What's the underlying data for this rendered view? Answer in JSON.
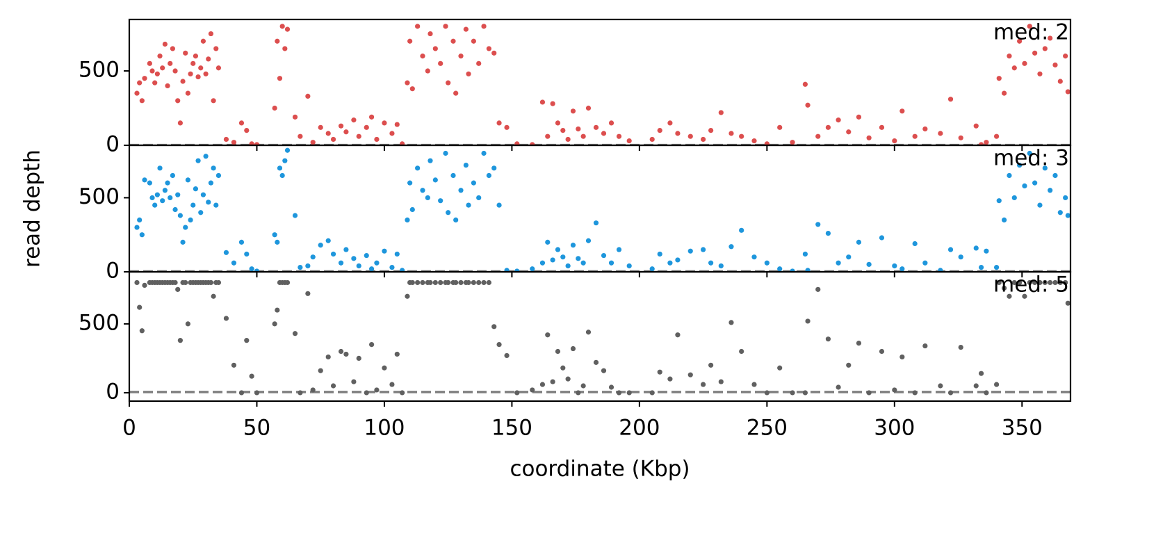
{
  "chart_data": [
    {
      "type": "scatter",
      "color": "#dc4e4e",
      "annotation": "med: 2",
      "median": 2,
      "xlim": [
        0,
        369
      ],
      "ylim": [
        0,
        846
      ],
      "yticks": [
        0,
        500
      ],
      "x": [
        3,
        4,
        5,
        6,
        8,
        9,
        10,
        11,
        12,
        13,
        14,
        15,
        16,
        17,
        18,
        19,
        20,
        21,
        22,
        23,
        24,
        25,
        26,
        27,
        28,
        29,
        30,
        31,
        32,
        33,
        34,
        35,
        38,
        41,
        44,
        46,
        48,
        50,
        57,
        58,
        59,
        60,
        61,
        62,
        65,
        67,
        70,
        72,
        75,
        78,
        80,
        83,
        85,
        88,
        90,
        93,
        95,
        97,
        100,
        103,
        105,
        107,
        109,
        110,
        111,
        113,
        115,
        117,
        118,
        120,
        122,
        124,
        125,
        127,
        128,
        130,
        132,
        133,
        135,
        137,
        139,
        141,
        143,
        145,
        148,
        152,
        158,
        162,
        164,
        166,
        168,
        170,
        172,
        174,
        176,
        178,
        180,
        183,
        186,
        189,
        192,
        196,
        205,
        208,
        212,
        215,
        220,
        225,
        228,
        232,
        236,
        240,
        245,
        250,
        255,
        260,
        265,
        266,
        270,
        274,
        278,
        282,
        286,
        290,
        295,
        300,
        303,
        308,
        312,
        318,
        322,
        326,
        332,
        334,
        336,
        340,
        341,
        343,
        345,
        347,
        349,
        351,
        353,
        355,
        357,
        359,
        361,
        363,
        365,
        367,
        368
      ],
      "values": [
        350,
        420,
        300,
        450,
        550,
        500,
        420,
        480,
        600,
        520,
        680,
        400,
        550,
        650,
        500,
        300,
        150,
        430,
        620,
        350,
        480,
        550,
        600,
        460,
        520,
        700,
        480,
        580,
        750,
        300,
        650,
        520,
        40,
        20,
        150,
        100,
        10,
        5,
        250,
        700,
        450,
        800,
        650,
        780,
        190,
        60,
        330,
        20,
        120,
        80,
        40,
        130,
        90,
        170,
        60,
        120,
        190,
        40,
        150,
        80,
        140,
        10,
        420,
        700,
        380,
        800,
        600,
        500,
        750,
        650,
        550,
        800,
        420,
        700,
        350,
        600,
        780,
        480,
        700,
        550,
        800,
        650,
        620,
        150,
        120,
        10,
        5,
        290,
        60,
        280,
        150,
        100,
        40,
        230,
        110,
        60,
        250,
        120,
        80,
        150,
        60,
        30,
        40,
        100,
        150,
        80,
        60,
        40,
        100,
        220,
        80,
        60,
        30,
        10,
        120,
        20,
        410,
        270,
        60,
        120,
        170,
        90,
        190,
        50,
        120,
        30,
        230,
        60,
        110,
        80,
        310,
        50,
        130,
        5,
        20,
        60,
        450,
        350,
        600,
        520,
        700,
        550,
        800,
        620,
        480,
        650,
        720,
        540,
        430,
        600,
        360
      ]
    },
    {
      "type": "scatter",
      "color": "#1e96dc",
      "annotation": "med: 3",
      "median": 3,
      "y_label": "read depth",
      "xlim": [
        0,
        369
      ],
      "ylim": [
        0,
        854
      ],
      "yticks": [
        0,
        500
      ],
      "x": [
        3,
        4,
        5,
        6,
        8,
        9,
        10,
        11,
        12,
        13,
        14,
        15,
        16,
        17,
        18,
        19,
        20,
        21,
        22,
        23,
        24,
        25,
        26,
        27,
        28,
        29,
        30,
        31,
        32,
        33,
        34,
        35,
        38,
        41,
        44,
        46,
        48,
        50,
        57,
        58,
        59,
        60,
        61,
        62,
        65,
        67,
        70,
        72,
        75,
        78,
        80,
        83,
        85,
        88,
        90,
        93,
        95,
        97,
        100,
        103,
        105,
        107,
        109,
        110,
        111,
        113,
        115,
        117,
        118,
        120,
        122,
        124,
        125,
        127,
        128,
        130,
        132,
        133,
        135,
        137,
        139,
        141,
        143,
        145,
        148,
        152,
        158,
        162,
        164,
        166,
        168,
        170,
        172,
        174,
        176,
        178,
        180,
        183,
        186,
        189,
        192,
        196,
        205,
        208,
        212,
        215,
        220,
        225,
        228,
        232,
        236,
        240,
        245,
        250,
        255,
        260,
        265,
        266,
        270,
        274,
        278,
        282,
        286,
        290,
        295,
        300,
        303,
        308,
        312,
        318,
        322,
        326,
        332,
        334,
        336,
        340,
        341,
        343,
        345,
        347,
        349,
        351,
        353,
        355,
        357,
        359,
        361,
        363,
        365,
        367,
        368
      ],
      "values": [
        300,
        350,
        250,
        620,
        600,
        500,
        450,
        520,
        700,
        480,
        550,
        600,
        500,
        650,
        420,
        520,
        380,
        200,
        300,
        620,
        350,
        450,
        560,
        750,
        400,
        520,
        780,
        470,
        600,
        700,
        450,
        650,
        130,
        60,
        200,
        120,
        20,
        5,
        250,
        200,
        700,
        650,
        750,
        820,
        380,
        30,
        40,
        100,
        180,
        210,
        120,
        60,
        150,
        90,
        40,
        110,
        20,
        60,
        140,
        30,
        120,
        10,
        350,
        600,
        420,
        700,
        550,
        500,
        750,
        620,
        480,
        800,
        400,
        650,
        350,
        550,
        720,
        450,
        600,
        500,
        800,
        650,
        700,
        450,
        10,
        5,
        20,
        60,
        200,
        80,
        150,
        100,
        40,
        180,
        90,
        60,
        210,
        330,
        110,
        60,
        150,
        40,
        20,
        120,
        60,
        80,
        140,
        150,
        60,
        40,
        170,
        280,
        100,
        60,
        20,
        5,
        120,
        10,
        320,
        260,
        60,
        100,
        200,
        50,
        230,
        40,
        20,
        190,
        60,
        10,
        150,
        100,
        160,
        30,
        140,
        30,
        480,
        350,
        650,
        500,
        720,
        580,
        800,
        600,
        450,
        700,
        550,
        650,
        400,
        500,
        380
      ]
    },
    {
      "type": "scatter",
      "color": "#606060",
      "annotation": "med: 5",
      "median": 5,
      "x_label": "coordinate (Kbp)",
      "xlim": [
        0,
        369
      ],
      "ylim": [
        -61,
        878
      ],
      "yticks": [
        0,
        500
      ],
      "xticks": [
        0,
        50,
        100,
        150,
        200,
        250,
        300,
        350
      ],
      "x": [
        3,
        4,
        5,
        6,
        8,
        9,
        10,
        11,
        12,
        13,
        14,
        15,
        16,
        17,
        18,
        19,
        20,
        21,
        22,
        23,
        24,
        25,
        26,
        27,
        28,
        29,
        30,
        31,
        32,
        33,
        34,
        35,
        38,
        41,
        44,
        46,
        48,
        50,
        57,
        58,
        59,
        60,
        61,
        62,
        65,
        67,
        70,
        72,
        75,
        78,
        80,
        83,
        85,
        88,
        90,
        93,
        95,
        97,
        100,
        103,
        105,
        107,
        109,
        110,
        111,
        113,
        115,
        117,
        118,
        120,
        122,
        124,
        125,
        127,
        128,
        130,
        132,
        133,
        135,
        137,
        139,
        141,
        143,
        145,
        148,
        152,
        158,
        162,
        164,
        166,
        168,
        170,
        172,
        174,
        176,
        178,
        180,
        183,
        186,
        189,
        192,
        196,
        205,
        208,
        212,
        215,
        220,
        225,
        228,
        232,
        236,
        240,
        245,
        250,
        255,
        260,
        265,
        266,
        270,
        274,
        278,
        282,
        286,
        290,
        295,
        300,
        303,
        308,
        312,
        318,
        322,
        326,
        332,
        334,
        336,
        340,
        341,
        343,
        345,
        347,
        349,
        351,
        353,
        355,
        357,
        359,
        361,
        363,
        365,
        367,
        368
      ],
      "values": [
        800,
        620,
        450,
        780,
        800,
        800,
        800,
        800,
        800,
        800,
        800,
        800,
        800,
        800,
        800,
        750,
        380,
        800,
        800,
        500,
        800,
        800,
        800,
        800,
        800,
        800,
        800,
        800,
        800,
        700,
        800,
        800,
        540,
        200,
        0,
        380,
        120,
        0,
        500,
        600,
        800,
        800,
        800,
        800,
        430,
        0,
        720,
        20,
        160,
        260,
        50,
        300,
        280,
        80,
        250,
        0,
        350,
        20,
        180,
        60,
        280,
        0,
        700,
        800,
        800,
        800,
        800,
        800,
        800,
        800,
        800,
        800,
        800,
        800,
        800,
        800,
        800,
        800,
        800,
        800,
        800,
        800,
        480,
        350,
        270,
        0,
        20,
        60,
        420,
        80,
        300,
        180,
        100,
        320,
        0,
        50,
        440,
        220,
        160,
        40,
        0,
        0,
        0,
        150,
        100,
        420,
        130,
        60,
        200,
        80,
        510,
        300,
        60,
        0,
        180,
        0,
        0,
        520,
        750,
        390,
        40,
        200,
        360,
        0,
        300,
        20,
        260,
        0,
        340,
        50,
        0,
        330,
        50,
        140,
        0,
        60,
        800,
        760,
        700,
        800,
        800,
        700,
        800,
        800,
        800,
        800,
        800,
        800,
        800,
        800,
        650
      ]
    }
  ]
}
